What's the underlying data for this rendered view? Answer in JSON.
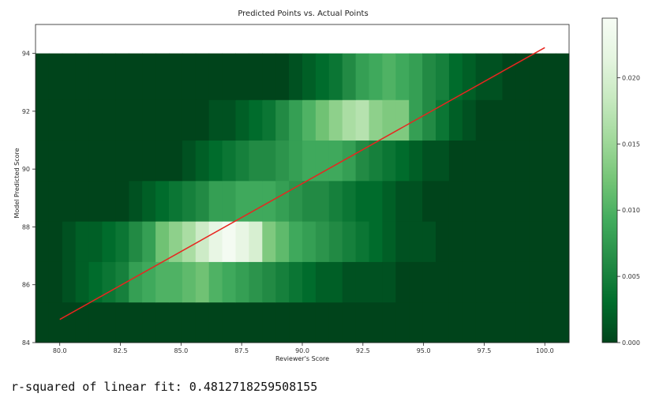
{
  "chart_data": {
    "type": "heatmap",
    "title": "Predicted Points vs. Actual Points",
    "xlabel": "Reviewer's Score",
    "ylabel": "Model Predicted Score",
    "xlim": [
      79.0,
      101.0
    ],
    "ylim": [
      84.0,
      95.0
    ],
    "x_ticks": [
      "80.0",
      "82.5",
      "85.0",
      "87.5",
      "90.0",
      "92.5",
      "95.0",
      "97.5",
      "100.0"
    ],
    "x_tick_values": [
      80,
      82.5,
      85,
      87.5,
      90,
      92.5,
      95,
      97.5,
      100
    ],
    "y_ticks": [
      "84",
      "86",
      "88",
      "90",
      "92",
      "94"
    ],
    "y_tick_values": [
      84,
      86,
      88,
      90,
      92,
      94
    ],
    "colormap": "Greens_r",
    "colorbar": {
      "vmin": 0.0,
      "vmax": 0.0245,
      "ticks": [
        "0.000",
        "0.005",
        "0.010",
        "0.015",
        "0.020"
      ],
      "tick_values": [
        0.0,
        0.005,
        0.01,
        0.015,
        0.02
      ]
    },
    "bins": {
      "x_edges_start": 79.0,
      "x_bin_width": 0.55,
      "y_edges": [
        84.0,
        85.4,
        86.8,
        88.2,
        89.6,
        91.0,
        92.4,
        94.0
      ]
    },
    "density_rows": [
      [
        0,
        0,
        0,
        0,
        0,
        0,
        0,
        0,
        0,
        0,
        0,
        0,
        0,
        0,
        0,
        0,
        0,
        0,
        0,
        0,
        0,
        0,
        0,
        0,
        0,
        0,
        0,
        0,
        0,
        0,
        0,
        0,
        0,
        0,
        0,
        0,
        0,
        0,
        0,
        0
      ],
      [
        0,
        0,
        0.001,
        0.002,
        0.003,
        0.004,
        0.005,
        0.008,
        0.009,
        0.01,
        0.01,
        0.011,
        0.012,
        0.01,
        0.009,
        0.008,
        0.007,
        0.006,
        0.005,
        0.004,
        0.003,
        0.002,
        0.002,
        0.001,
        0.001,
        0.001,
        0.001,
        0,
        0,
        0,
        0,
        0,
        0,
        0,
        0,
        0,
        0,
        0,
        0,
        0
      ],
      [
        0,
        0,
        0.001,
        0.002,
        0.002,
        0.003,
        0.004,
        0.006,
        0.008,
        0.012,
        0.014,
        0.016,
        0.019,
        0.022,
        0.024,
        0.022,
        0.02,
        0.013,
        0.011,
        0.009,
        0.008,
        0.007,
        0.006,
        0.005,
        0.004,
        0.003,
        0.002,
        0.001,
        0.001,
        0.001,
        0,
        0,
        0,
        0,
        0,
        0,
        0,
        0,
        0,
        0
      ],
      [
        0,
        0,
        0,
        0,
        0,
        0,
        0,
        0.001,
        0.002,
        0.003,
        0.004,
        0.005,
        0.006,
        0.008,
        0.008,
        0.009,
        0.009,
        0.009,
        0.008,
        0.007,
        0.006,
        0.006,
        0.005,
        0.004,
        0.003,
        0.003,
        0.002,
        0.001,
        0.001,
        0,
        0,
        0,
        0,
        0,
        0,
        0,
        0,
        0,
        0,
        0
      ],
      [
        0,
        0,
        0,
        0,
        0,
        0,
        0,
        0,
        0,
        0,
        0,
        0.001,
        0.002,
        0.003,
        0.004,
        0.005,
        0.006,
        0.006,
        0.007,
        0.008,
        0.009,
        0.009,
        0.009,
        0.008,
        0.006,
        0.005,
        0.004,
        0.003,
        0.002,
        0.001,
        0.001,
        0,
        0,
        0,
        0,
        0,
        0,
        0,
        0,
        0
      ],
      [
        0,
        0,
        0,
        0,
        0,
        0,
        0,
        0,
        0,
        0,
        0,
        0,
        0,
        0.001,
        0.001,
        0.002,
        0.003,
        0.004,
        0.006,
        0.008,
        0.01,
        0.012,
        0.014,
        0.016,
        0.017,
        0.014,
        0.013,
        0.013,
        0.008,
        0.006,
        0.004,
        0.002,
        0.001,
        0,
        0,
        0,
        0,
        0,
        0,
        0
      ],
      [
        0,
        0,
        0,
        0,
        0,
        0,
        0,
        0,
        0,
        0,
        0,
        0,
        0,
        0,
        0,
        0,
        0,
        0,
        0,
        0.001,
        0.002,
        0.003,
        0.004,
        0.006,
        0.008,
        0.009,
        0.01,
        0.009,
        0.008,
        0.006,
        0.005,
        0.003,
        0.002,
        0.001,
        0.001,
        0,
        0,
        0,
        0,
        0
      ]
    ],
    "fit_line": {
      "x": [
        80.0,
        100.0
      ],
      "y": [
        84.8,
        94.2
      ],
      "color": "#e8251f"
    }
  },
  "output": {
    "text": "r-squared of linear fit: 0.4812718259508155"
  }
}
